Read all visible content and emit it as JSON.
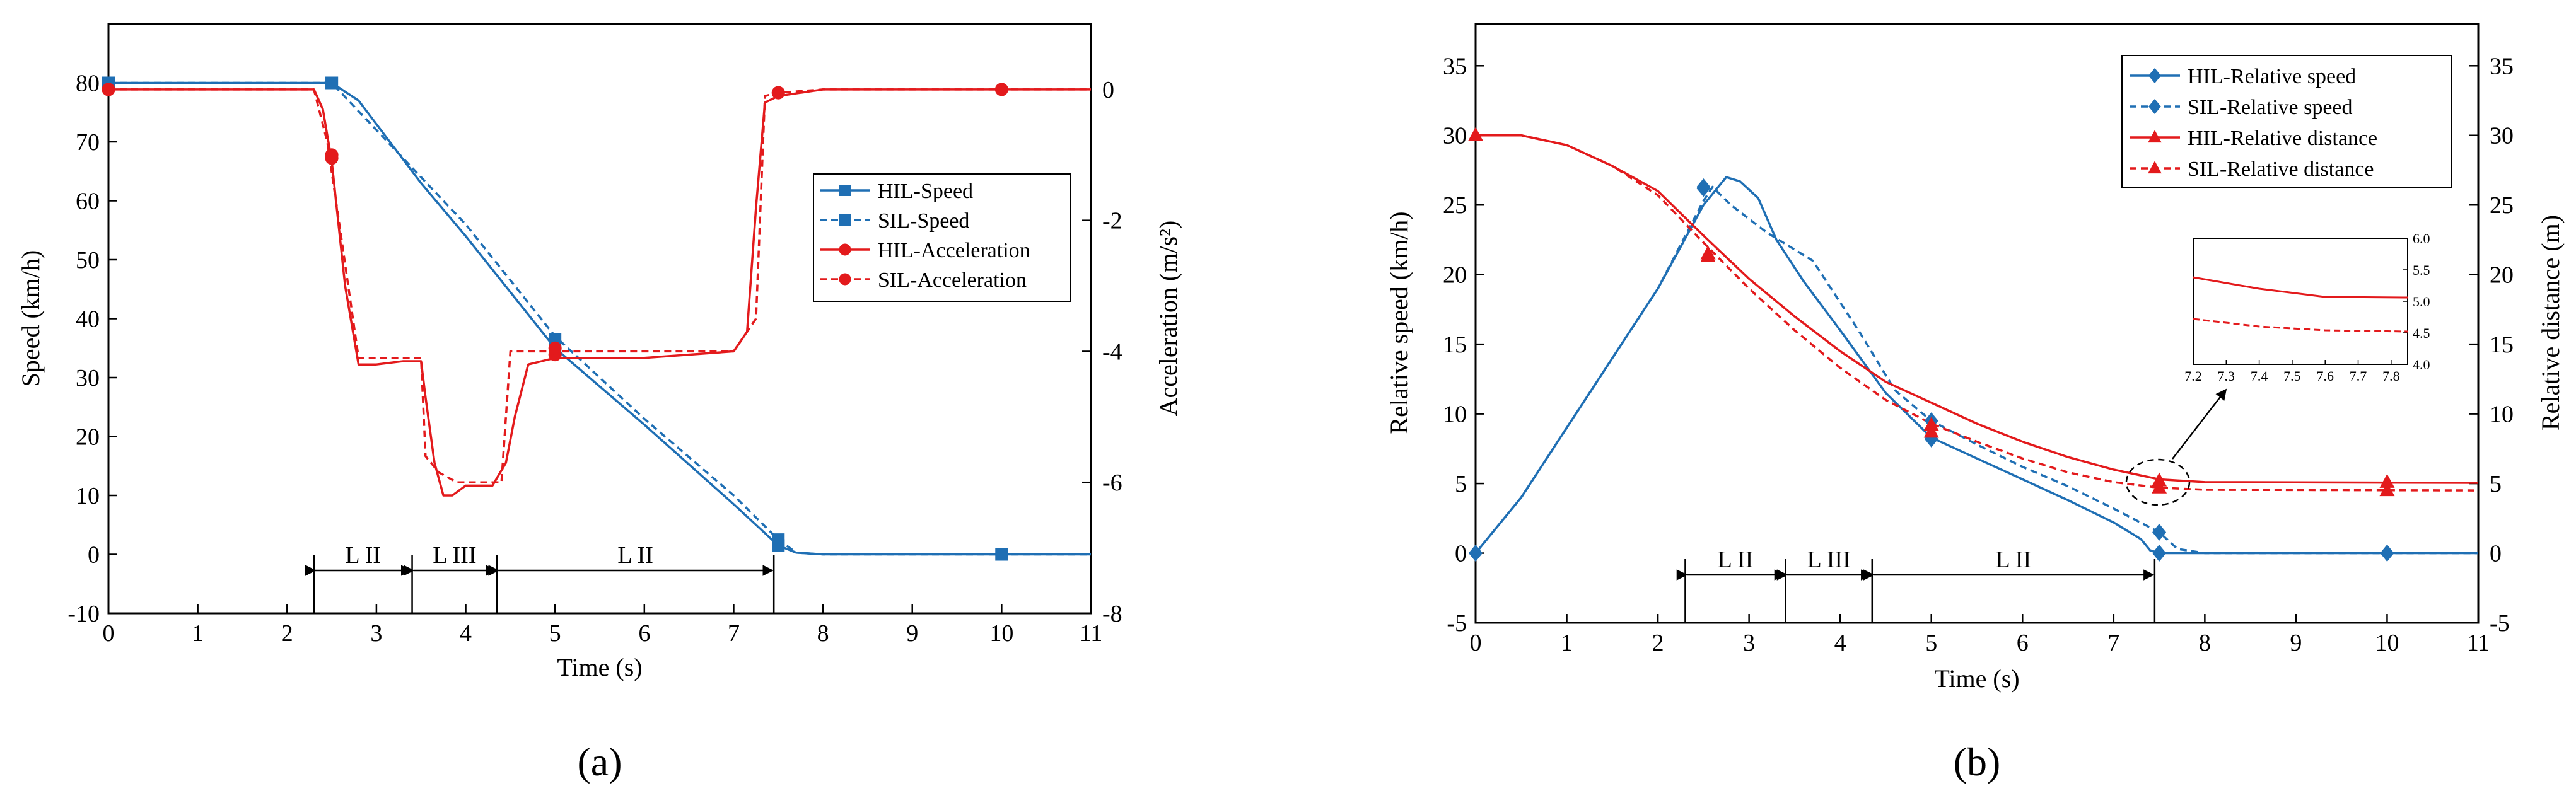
{
  "chart_data": [
    {
      "id": "a",
      "type": "line",
      "caption": "(a)",
      "xlabel": "Time (s)",
      "ylabel_left": "Speed (km/h)",
      "ylabel_right": "Acceleration (m/s²)",
      "xlim": [
        0,
        11
      ],
      "ylim_left": [
        -10,
        90
      ],
      "ylim_right": [
        -8,
        1
      ],
      "xticks": [
        0,
        1,
        2,
        3,
        4,
        5,
        6,
        7,
        8,
        9,
        10,
        11
      ],
      "yticks_left": [
        -10,
        0,
        10,
        20,
        30,
        40,
        50,
        60,
        70,
        80
      ],
      "yticks_right": [
        -8,
        -6,
        -4,
        -2,
        0
      ],
      "legend_position": "right",
      "segments": [
        {
          "label": "L II",
          "from": 2.3,
          "to": 3.4
        },
        {
          "label": "L III",
          "from": 3.4,
          "to": 4.35
        },
        {
          "label": "L II",
          "from": 4.35,
          "to": 7.45
        }
      ],
      "series": [
        {
          "name": "HIL-Speed",
          "axis": "left",
          "color": "#1f6fb4",
          "dash": "solid",
          "marker": "square",
          "points": [
            [
              0,
              80
            ],
            [
              2.5,
              80
            ],
            [
              2.8,
              77
            ],
            [
              3.5,
              63
            ],
            [
              4,
              54
            ],
            [
              5,
              35
            ],
            [
              6,
              22
            ],
            [
              7,
              8.5
            ],
            [
              7.5,
              1.5
            ],
            [
              7.7,
              0.3
            ],
            [
              8,
              0
            ],
            [
              11,
              0
            ]
          ],
          "markers": [
            [
              0,
              80
            ],
            [
              2.5,
              80
            ],
            [
              5,
              34.5
            ],
            [
              7.5,
              1.5
            ],
            [
              10,
              0
            ]
          ]
        },
        {
          "name": "SIL-Speed",
          "axis": "left",
          "color": "#1f6fb4",
          "dash": "dashed",
          "marker": "square",
          "points": [
            [
              0,
              80
            ],
            [
              2.5,
              80
            ],
            [
              3.5,
              64
            ],
            [
              4,
              56
            ],
            [
              5,
              37
            ],
            [
              6,
              23
            ],
            [
              7,
              10
            ],
            [
              7.5,
              2.5
            ],
            [
              7.7,
              0.3
            ],
            [
              8,
              0
            ],
            [
              11,
              0
            ]
          ],
          "markers": [
            [
              0,
              80
            ],
            [
              2.5,
              80
            ],
            [
              5,
              36.5
            ],
            [
              7.5,
              2.5
            ],
            [
              10,
              0
            ]
          ]
        },
        {
          "name": "HIL-Acceleration",
          "axis": "right",
          "color": "#e31a1c",
          "dash": "solid",
          "marker": "circle",
          "points": [
            [
              0,
              0
            ],
            [
              2.3,
              0
            ],
            [
              2.4,
              -0.3
            ],
            [
              2.5,
              -1.1
            ],
            [
              2.65,
              -3
            ],
            [
              2.8,
              -4.2
            ],
            [
              3.0,
              -4.2
            ],
            [
              3.3,
              -4.15
            ],
            [
              3.5,
              -4.15
            ],
            [
              3.55,
              -4.7
            ],
            [
              3.65,
              -5.7
            ],
            [
              3.75,
              -6.2
            ],
            [
              3.85,
              -6.2
            ],
            [
              4.0,
              -6.05
            ],
            [
              4.3,
              -6.05
            ],
            [
              4.45,
              -5.7
            ],
            [
              4.55,
              -5.0
            ],
            [
              4.7,
              -4.2
            ],
            [
              5,
              -4.1
            ],
            [
              6,
              -4.1
            ],
            [
              7,
              -4.0
            ],
            [
              7.15,
              -3.7
            ],
            [
              7.25,
              -1.8
            ],
            [
              7.35,
              -0.2
            ],
            [
              7.5,
              -0.1
            ],
            [
              8,
              0
            ],
            [
              11,
              0
            ]
          ],
          "markers": [
            [
              0,
              0
            ],
            [
              2.5,
              -1.05
            ],
            [
              5,
              -4.05
            ],
            [
              7.5,
              -0.05
            ],
            [
              10,
              0
            ]
          ]
        },
        {
          "name": "SIL-Acceleration",
          "axis": "right",
          "color": "#e31a1c",
          "dash": "dashed",
          "marker": "circle",
          "points": [
            [
              0,
              0
            ],
            [
              2.3,
              0
            ],
            [
              2.45,
              -0.8
            ],
            [
              2.6,
              -2.2
            ],
            [
              2.8,
              -4.1
            ],
            [
              3.0,
              -4.1
            ],
            [
              3.5,
              -4.1
            ],
            [
              3.55,
              -5.6
            ],
            [
              3.7,
              -5.85
            ],
            [
              3.9,
              -6.0
            ],
            [
              4.4,
              -6.0
            ],
            [
              4.5,
              -4.0
            ],
            [
              5,
              -4.0
            ],
            [
              7,
              -4.0
            ],
            [
              7.25,
              -3.5
            ],
            [
              7.35,
              -0.1
            ],
            [
              7.5,
              -0.05
            ],
            [
              8,
              0
            ],
            [
              11,
              0
            ]
          ],
          "markers": [
            [
              0,
              0
            ],
            [
              2.5,
              -1.0
            ],
            [
              5,
              -3.95
            ],
            [
              7.5,
              -0.05
            ],
            [
              10,
              0
            ]
          ]
        }
      ]
    },
    {
      "id": "b",
      "type": "line",
      "caption": "(b)",
      "xlabel": "Time (s)",
      "ylabel_left": "Relative speed (km/h)",
      "ylabel_right": "Relative distance (m)",
      "xlim": [
        0,
        11
      ],
      "ylim_left": [
        -5,
        38
      ],
      "ylim_right": [
        -5,
        38
      ],
      "xticks": [
        0,
        1,
        2,
        3,
        4,
        5,
        6,
        7,
        8,
        9,
        10,
        11
      ],
      "yticks_left": [
        -5,
        0,
        5,
        10,
        15,
        20,
        25,
        30,
        35
      ],
      "yticks_right": [
        -5,
        0,
        5,
        10,
        15,
        20,
        25,
        30,
        35
      ],
      "legend_position": "top-right",
      "segments": [
        {
          "label": "L II",
          "from": 2.3,
          "to": 3.4
        },
        {
          "label": "L III",
          "from": 3.4,
          "to": 4.35
        },
        {
          "label": "L II",
          "from": 4.35,
          "to": 7.45
        }
      ],
      "series": [
        {
          "name": "HIL-Relative speed",
          "axis": "left",
          "color": "#1f6fb4",
          "dash": "solid",
          "marker": "diamond",
          "points": [
            [
              0,
              0
            ],
            [
              0.5,
              4
            ],
            [
              1,
              9
            ],
            [
              1.5,
              14
            ],
            [
              2,
              19
            ],
            [
              2.5,
              25
            ],
            [
              2.75,
              27
            ],
            [
              2.9,
              26.7
            ],
            [
              3.1,
              25.5
            ],
            [
              3.3,
              22.5
            ],
            [
              3.6,
              19.5
            ],
            [
              4,
              16
            ],
            [
              4.5,
              11.5
            ],
            [
              5,
              8.3
            ],
            [
              5.5,
              6.8
            ],
            [
              6,
              5.3
            ],
            [
              6.5,
              3.8
            ],
            [
              7,
              2.2
            ],
            [
              7.3,
              1
            ],
            [
              7.4,
              0.2
            ],
            [
              7.5,
              0
            ],
            [
              11,
              0
            ]
          ],
          "markers": [
            [
              0,
              0
            ],
            [
              2.5,
              26.2
            ],
            [
              5,
              8.2
            ],
            [
              7.5,
              0
            ],
            [
              10,
              0
            ]
          ]
        },
        {
          "name": "SIL-Relative speed",
          "axis": "left",
          "color": "#1f6fb4",
          "dash": "dashed",
          "marker": "diamond",
          "points": [
            [
              0,
              0
            ],
            [
              0.5,
              4
            ],
            [
              1,
              9
            ],
            [
              1.5,
              14
            ],
            [
              2,
              19
            ],
            [
              2.5,
              25.3
            ],
            [
              2.6,
              26.3
            ],
            [
              2.8,
              25
            ],
            [
              3.2,
              23
            ],
            [
              3.7,
              21
            ],
            [
              4.2,
              16
            ],
            [
              4.6,
              11.7
            ],
            [
              5,
              9.5
            ],
            [
              5.5,
              7.8
            ],
            [
              6,
              6.2
            ],
            [
              6.5,
              4.8
            ],
            [
              7,
              3.2
            ],
            [
              7.5,
              1.5
            ],
            [
              7.7,
              0.3
            ],
            [
              8,
              0
            ],
            [
              11,
              0
            ]
          ],
          "markers": [
            [
              0,
              0
            ],
            [
              2.5,
              26.3
            ],
            [
              5,
              9.5
            ],
            [
              7.5,
              1.5
            ],
            [
              10,
              0
            ]
          ]
        },
        {
          "name": "HIL-Relative distance",
          "axis": "right",
          "color": "#e31a1c",
          "dash": "solid",
          "marker": "triangle",
          "points": [
            [
              0,
              30
            ],
            [
              0.5,
              30
            ],
            [
              1,
              29.3
            ],
            [
              1.5,
              27.8
            ],
            [
              2,
              26
            ],
            [
              2.5,
              22.8
            ],
            [
              3,
              19.7
            ],
            [
              3.5,
              17
            ],
            [
              4,
              14.5
            ],
            [
              4.5,
              12.3
            ],
            [
              5,
              10.8
            ],
            [
              5.5,
              9.3
            ],
            [
              6,
              8
            ],
            [
              6.5,
              6.9
            ],
            [
              7,
              6
            ],
            [
              7.5,
              5.3
            ],
            [
              8,
              5.1
            ],
            [
              11,
              5.05
            ]
          ],
          "markers": [
            [
              0,
              30
            ],
            [
              2.55,
              21.5
            ],
            [
              5,
              9.2
            ],
            [
              7.5,
              5.2
            ],
            [
              10,
              5.1
            ]
          ]
        },
        {
          "name": "SIL-Relative distance",
          "axis": "right",
          "color": "#e31a1c",
          "dash": "dashed",
          "marker": "triangle",
          "points": [
            [
              0,
              30
            ],
            [
              0.5,
              30
            ],
            [
              1,
              29.3
            ],
            [
              1.5,
              27.8
            ],
            [
              2,
              25.7
            ],
            [
              2.5,
              22.3
            ],
            [
              3,
              19
            ],
            [
              3.5,
              16
            ],
            [
              4,
              13.3
            ],
            [
              4.5,
              11
            ],
            [
              5,
              9.3
            ],
            [
              5.5,
              8
            ],
            [
              6,
              6.8
            ],
            [
              6.5,
              5.8
            ],
            [
              7,
              5.1
            ],
            [
              7.5,
              4.7
            ],
            [
              8,
              4.55
            ],
            [
              11,
              4.5
            ]
          ],
          "markers": [
            [
              0,
              30
            ],
            [
              2.55,
              21.3
            ],
            [
              5,
              8.7
            ],
            [
              7.5,
              4.7
            ],
            [
              10,
              4.5
            ]
          ]
        }
      ],
      "inset": {
        "xlim": [
          7.2,
          7.85
        ],
        "ylim": [
          4.0,
          6.0
        ],
        "xticks": [
          "7.2",
          "7.3",
          "7.4",
          "7.5",
          "7.6",
          "7.7",
          "7.8"
        ],
        "yticks": [
          "4.0",
          "4.5",
          "5.0",
          "5.5",
          "6.0"
        ],
        "lines": [
          {
            "color": "#e31a1c",
            "dash": "solid",
            "points": [
              [
                7.2,
                5.38
              ],
              [
                7.4,
                5.2
              ],
              [
                7.6,
                5.07
              ],
              [
                7.85,
                5.06
              ]
            ]
          },
          {
            "color": "#e31a1c",
            "dash": "dashed",
            "points": [
              [
                7.2,
                4.72
              ],
              [
                7.4,
                4.6
              ],
              [
                7.6,
                4.54
              ],
              [
                7.85,
                4.52
              ]
            ]
          }
        ]
      }
    }
  ]
}
